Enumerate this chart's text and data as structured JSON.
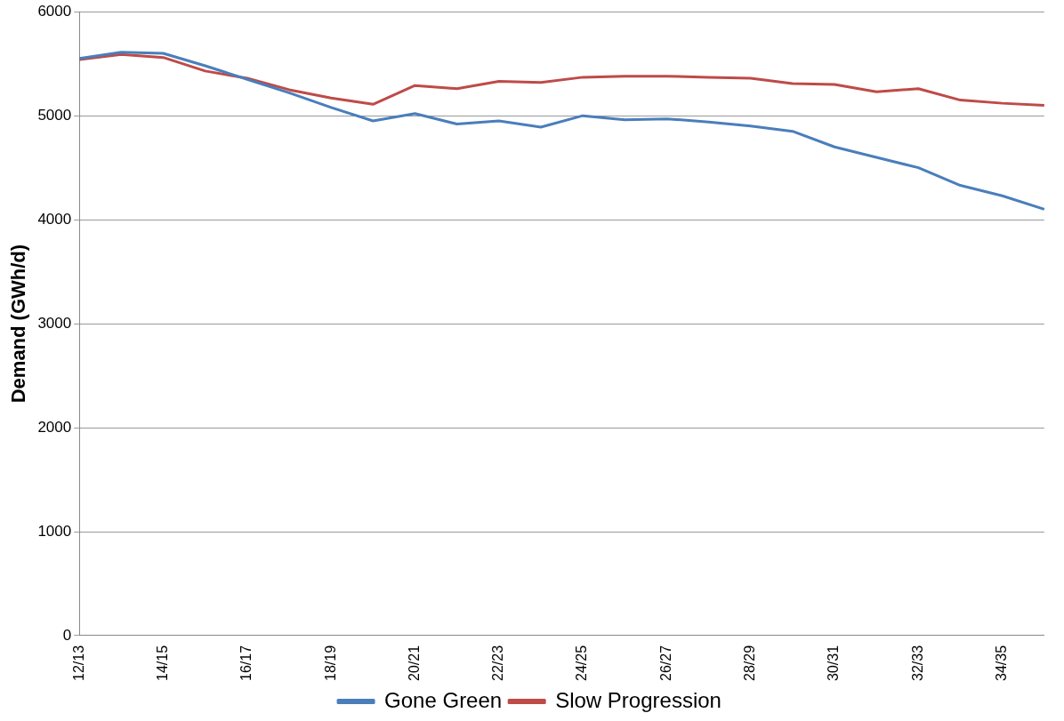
{
  "chart_data": {
    "type": "line",
    "ylabel": "Demand (GWh/d)",
    "categories": [
      "12/13",
      null,
      "14/15",
      null,
      "16/17",
      null,
      "18/19",
      null,
      "20/21",
      null,
      "22/23",
      null,
      "24/25",
      null,
      "26/27",
      null,
      "28/29",
      null,
      "30/31",
      null,
      "32/33",
      null,
      "34/35",
      null
    ],
    "series": [
      {
        "name": "Gone Green",
        "color": "#4a7ebb",
        "values": [
          5550,
          5610,
          5600,
          5480,
          5350,
          5220,
          5080,
          4950,
          5020,
          4920,
          4950,
          4890,
          5000,
          4960,
          4970,
          4940,
          4900,
          4850,
          4700,
          4600,
          4500,
          4330,
          4230,
          4100
        ]
      },
      {
        "name": "Slow Progression",
        "color": "#be4b48",
        "values": [
          5540,
          5590,
          5560,
          5430,
          5360,
          5250,
          5170,
          5110,
          5290,
          5260,
          5330,
          5320,
          5370,
          5380,
          5380,
          5370,
          5360,
          5310,
          5300,
          5230,
          5260,
          5150,
          5120,
          5100
        ]
      }
    ],
    "ylim": [
      0,
      6000
    ],
    "yticks": [
      0,
      1000,
      2000,
      3000,
      4000,
      5000,
      6000
    ],
    "grid": "y",
    "legend": "bottom",
    "marker": "none",
    "line_style": "solid"
  }
}
